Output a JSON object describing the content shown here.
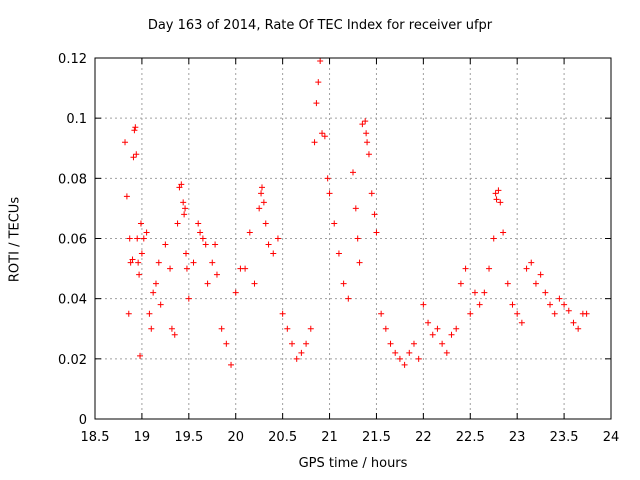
{
  "chart_data": {
    "type": "scatter",
    "title": "Day 163 of 2014, Rate Of TEC Index for receiver ufpr",
    "xlabel": "GPS time / hours",
    "ylabel": "ROTI / TECUs",
    "xlim": [
      18.5,
      24
    ],
    "ylim": [
      0,
      0.12
    ],
    "xticks": [
      "18.5",
      "19",
      "19.5",
      "20",
      "20.5",
      "21",
      "21.5",
      "22",
      "22.5",
      "23",
      "23.5",
      "24"
    ],
    "yticks": [
      "0",
      "0.02",
      "0.04",
      "0.06",
      "0.08",
      "0.1",
      "0.12"
    ],
    "grid": true,
    "marker": "+",
    "color": "#ff0000",
    "series": [
      {
        "name": "ROTI",
        "x": [
          18.82,
          18.84,
          18.86,
          18.87,
          18.88,
          18.9,
          18.91,
          18.92,
          18.93,
          18.94,
          18.95,
          18.96,
          18.97,
          18.98,
          18.99,
          19.0,
          19.02,
          19.05,
          19.08,
          19.1,
          19.12,
          19.15,
          19.18,
          19.2,
          19.25,
          19.3,
          19.32,
          19.35,
          19.38,
          19.4,
          19.42,
          19.44,
          19.45,
          19.46,
          19.47,
          19.48,
          19.5,
          19.55,
          19.6,
          19.62,
          19.65,
          19.68,
          19.7,
          19.75,
          19.78,
          19.8,
          19.85,
          19.9,
          19.95,
          20.0,
          20.05,
          20.1,
          20.15,
          20.2,
          20.25,
          20.27,
          20.28,
          20.3,
          20.32,
          20.35,
          20.4,
          20.45,
          20.5,
          20.55,
          20.6,
          20.65,
          20.7,
          20.75,
          20.8,
          20.84,
          20.86,
          20.88,
          20.9,
          20.92,
          20.95,
          20.98,
          21.0,
          21.05,
          21.1,
          21.15,
          21.2,
          21.25,
          21.28,
          21.3,
          21.32,
          21.35,
          21.38,
          21.39,
          21.4,
          21.42,
          21.45,
          21.48,
          21.5,
          21.55,
          21.6,
          21.65,
          21.7,
          21.75,
          21.8,
          21.85,
          21.9,
          21.95,
          22.0,
          22.05,
          22.1,
          22.15,
          22.2,
          22.25,
          22.3,
          22.35,
          22.4,
          22.45,
          22.5,
          22.55,
          22.6,
          22.65,
          22.7,
          22.75,
          22.77,
          22.78,
          22.8,
          22.82,
          22.85,
          22.9,
          22.95,
          23.0,
          23.05,
          23.1,
          23.15,
          23.2,
          23.25,
          23.3,
          23.35,
          23.4,
          23.45,
          23.5,
          23.55,
          23.6,
          23.65,
          23.7,
          23.74
        ],
        "y": [
          0.092,
          0.074,
          0.035,
          0.06,
          0.052,
          0.053,
          0.087,
          0.096,
          0.097,
          0.088,
          0.06,
          0.052,
          0.048,
          0.021,
          0.065,
          0.055,
          0.06,
          0.062,
          0.035,
          0.03,
          0.042,
          0.045,
          0.052,
          0.038,
          0.058,
          0.05,
          0.03,
          0.028,
          0.065,
          0.077,
          0.078,
          0.072,
          0.068,
          0.07,
          0.055,
          0.05,
          0.04,
          0.052,
          0.065,
          0.062,
          0.06,
          0.058,
          0.045,
          0.052,
          0.058,
          0.048,
          0.03,
          0.025,
          0.018,
          0.042,
          0.05,
          0.05,
          0.062,
          0.045,
          0.07,
          0.075,
          0.077,
          0.072,
          0.065,
          0.058,
          0.055,
          0.06,
          0.035,
          0.03,
          0.025,
          0.02,
          0.022,
          0.025,
          0.03,
          0.092,
          0.105,
          0.112,
          0.119,
          0.095,
          0.094,
          0.08,
          0.075,
          0.065,
          0.055,
          0.045,
          0.04,
          0.082,
          0.07,
          0.06,
          0.052,
          0.098,
          0.099,
          0.095,
          0.092,
          0.088,
          0.075,
          0.068,
          0.062,
          0.035,
          0.03,
          0.025,
          0.022,
          0.02,
          0.018,
          0.022,
          0.025,
          0.02,
          0.038,
          0.032,
          0.028,
          0.03,
          0.025,
          0.022,
          0.028,
          0.03,
          0.045,
          0.05,
          0.035,
          0.042,
          0.038,
          0.042,
          0.05,
          0.06,
          0.075,
          0.073,
          0.076,
          0.072,
          0.062,
          0.045,
          0.038,
          0.035,
          0.032,
          0.05,
          0.052,
          0.045,
          0.048,
          0.042,
          0.038,
          0.035,
          0.04,
          0.038,
          0.036,
          0.032,
          0.03,
          0.035,
          0.035
        ]
      }
    ]
  }
}
